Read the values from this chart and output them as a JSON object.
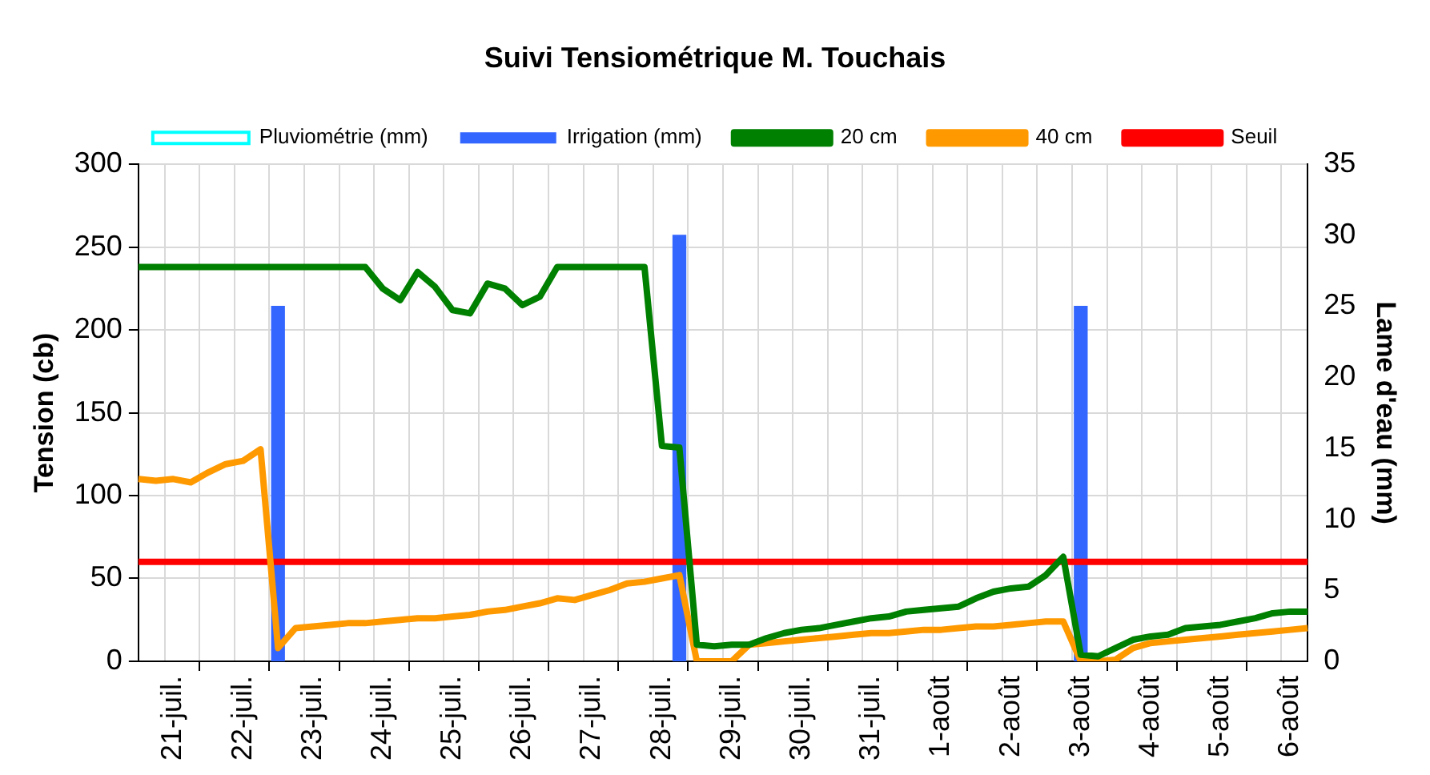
{
  "chart_data": {
    "type": "line",
    "title": "Suivi Tensiométrique M. Touchais",
    "ylabel": "Tension (cb)",
    "y2label": "Lame d'eau (mm)",
    "categories": [
      null,
      null,
      "21-juil.",
      null,
      null,
      null,
      "22-juil.",
      null,
      null,
      null,
      "23-juil.",
      null,
      null,
      null,
      "24-juil.",
      null,
      null,
      null,
      "25-juil.",
      null,
      null,
      null,
      "26-juil.",
      null,
      null,
      null,
      "27-juil.",
      null,
      null,
      null,
      "28-juil.",
      null,
      null,
      null,
      "29-juil.",
      null,
      null,
      null,
      "30-juil.",
      null,
      null,
      null,
      "31-juil.",
      null,
      null,
      null,
      "1-août",
      null,
      null,
      null,
      "2-août",
      null,
      null,
      null,
      "3-août",
      null,
      null,
      null,
      "4-août",
      null,
      null,
      null,
      "5-août",
      null,
      null,
      null,
      "6-août",
      null
    ],
    "series": [
      {
        "name": "Pluviométrie (mm)",
        "type": "bar",
        "axis": "y2",
        "color": "#00ffff",
        "values": [
          null,
          null,
          null,
          null,
          null,
          null,
          null,
          null,
          null,
          null,
          null,
          null,
          null,
          null,
          null,
          null,
          null,
          null,
          null,
          null,
          null,
          null,
          null,
          null,
          null,
          null,
          null,
          null,
          null,
          null,
          null,
          null,
          null,
          null,
          null,
          null,
          null,
          null,
          null,
          null,
          null,
          null,
          null,
          null,
          null,
          null,
          null,
          null,
          null,
          null,
          null,
          null,
          null,
          null,
          null,
          null,
          null,
          null,
          null,
          null,
          null,
          null,
          null,
          null,
          null,
          null,
          null,
          null
        ]
      },
      {
        "name": "Irrigation (mm)",
        "type": "bar",
        "axis": "y2",
        "color": "#3366ff",
        "values": [
          null,
          null,
          null,
          null,
          null,
          null,
          null,
          null,
          25,
          null,
          null,
          null,
          null,
          null,
          null,
          null,
          null,
          null,
          null,
          null,
          null,
          null,
          null,
          null,
          null,
          null,
          null,
          null,
          null,
          null,
          null,
          30,
          null,
          null,
          null,
          null,
          null,
          null,
          null,
          null,
          null,
          null,
          null,
          null,
          null,
          null,
          null,
          null,
          null,
          null,
          null,
          null,
          null,
          null,
          25,
          null,
          null,
          null,
          null,
          null,
          null,
          null,
          null,
          null,
          null,
          null,
          null,
          null
        ]
      },
      {
        "name": "20 cm",
        "color": "#008000",
        "values": [
          238,
          238,
          238,
          238,
          238,
          238,
          238,
          238,
          238,
          238,
          238,
          238,
          238,
          238,
          225,
          218,
          235,
          226,
          212,
          210,
          228,
          225,
          215,
          220,
          238,
          238,
          238,
          238,
          238,
          238,
          130,
          129,
          10,
          9,
          10,
          10,
          14,
          17,
          19,
          20,
          22,
          24,
          26,
          27,
          30,
          31,
          32,
          33,
          38,
          42,
          44,
          45,
          52,
          63,
          4,
          3,
          8,
          13,
          15,
          16,
          20,
          21,
          22,
          24,
          26,
          29,
          30,
          30
        ]
      },
      {
        "name": "40 cm",
        "color": "#ff9900",
        "values": [
          110,
          109,
          110,
          108,
          114,
          119,
          121,
          128,
          8,
          20,
          21,
          22,
          23,
          23,
          24,
          25,
          26,
          26,
          27,
          28,
          30,
          31,
          33,
          35,
          38,
          37,
          40,
          43,
          47,
          48,
          50,
          52,
          0,
          0,
          0,
          10,
          11,
          12,
          13,
          14,
          15,
          16,
          17,
          17,
          18,
          19,
          19,
          20,
          21,
          21,
          22,
          23,
          24,
          24,
          0,
          0,
          1,
          8,
          11,
          12,
          13,
          14,
          15,
          16,
          17,
          18,
          19,
          20
        ]
      },
      {
        "name": "Seuil",
        "color": "#ff0000",
        "values": [
          60,
          60,
          60,
          60,
          60,
          60,
          60,
          60,
          60,
          60,
          60,
          60,
          60,
          60,
          60,
          60,
          60,
          60,
          60,
          60,
          60,
          60,
          60,
          60,
          60,
          60,
          60,
          60,
          60,
          60,
          60,
          60,
          60,
          60,
          60,
          60,
          60,
          60,
          60,
          60,
          60,
          60,
          60,
          60,
          60,
          60,
          60,
          60,
          60,
          60,
          60,
          60,
          60,
          60,
          60,
          60,
          60,
          60,
          60,
          60,
          60,
          60,
          60,
          60,
          60,
          60,
          60,
          60
        ]
      }
    ],
    "ylim": [
      0,
      300
    ],
    "yticks": [
      0,
      50,
      100,
      150,
      200,
      250,
      300
    ],
    "y2lim": [
      0,
      35
    ],
    "y2ticks": [
      0,
      5,
      10,
      15,
      20,
      25,
      30,
      35
    ],
    "grid": true,
    "legend": "top",
    "marker": "none"
  }
}
